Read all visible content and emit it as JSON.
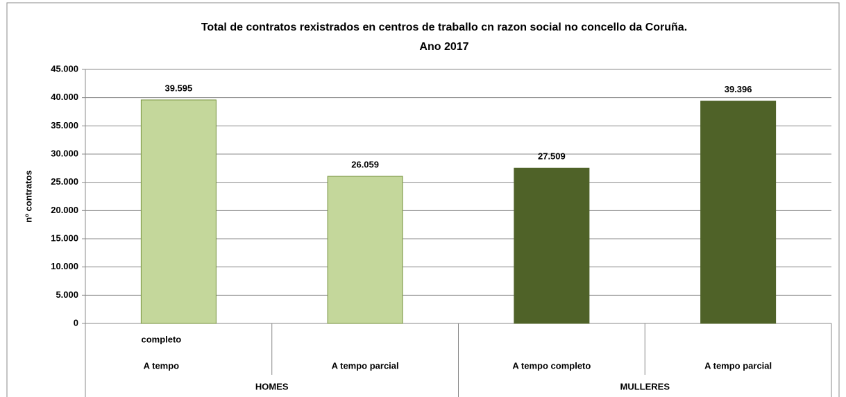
{
  "chart_data": {
    "type": "bar",
    "title": [
      "Total de contratos rexistrados en centros de traballo cn razon social no concello da Coruña.",
      "Ano 2017"
    ],
    "y_label": "nº contratos",
    "ylim": [
      0,
      45000
    ],
    "yticks": [
      0,
      {
        "value": 5000,
        "label": "5.000"
      },
      {
        "value": 10000,
        "label": "10.000"
      },
      {
        "value": 15000,
        "label": "15.000"
      },
      {
        "value": 20000,
        "label": "20.000"
      },
      {
        "value": 25000,
        "label": "25.000"
      },
      {
        "value": 30000,
        "label": "30.000"
      },
      {
        "value": 35000,
        "label": "35.000"
      },
      {
        "value": 40000,
        "label": "40.000"
      },
      {
        "value": 45000,
        "label": "45.000"
      }
    ],
    "grid": true,
    "series": [
      {
        "name": "HOMES",
        "color": "#c4d79b",
        "border": "#76923c",
        "categories": [
          [
            "completo",
            "A tempo"
          ],
          "A tempo parcial"
        ],
        "values": [
          39595,
          26059
        ],
        "value_labels": [
          "39.595",
          "26.059"
        ]
      },
      {
        "name": "MULLERES",
        "color": "#4f6228",
        "border": "#4f6228",
        "categories": [
          "A tempo completo",
          "A tempo parcial"
        ],
        "values": [
          27509,
          39396
        ],
        "value_labels": [
          "27.509",
          "39.396"
        ]
      }
    ]
  }
}
